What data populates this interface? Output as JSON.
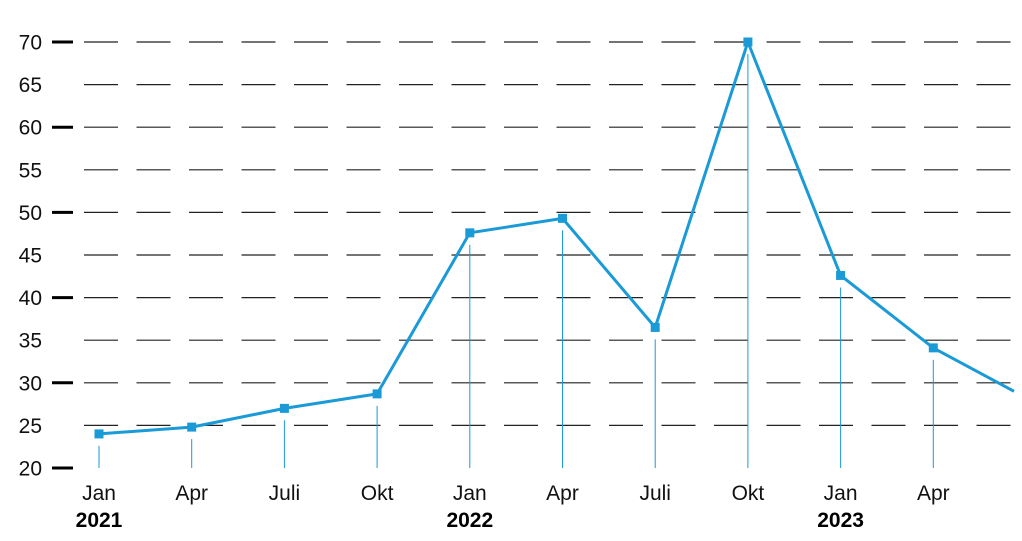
{
  "chart_data": {
    "type": "line",
    "title": "",
    "xlabel": "",
    "ylabel": "",
    "ylim": [
      20,
      70
    ],
    "y_ticks": [
      20,
      25,
      30,
      35,
      40,
      45,
      50,
      55,
      60,
      65,
      70
    ],
    "y_major_ticks": [
      20,
      30,
      40,
      50,
      60,
      70
    ],
    "grid": "dashed horizontal",
    "legend": "none",
    "categories": [
      "Jan",
      "Apr",
      "Juli",
      "Okt",
      "Jan",
      "Apr",
      "Juli",
      "Okt",
      "Jan",
      "Apr"
    ],
    "years": [
      {
        "label": "2021",
        "category_index": 0
      },
      {
        "label": "2022",
        "category_index": 4
      },
      {
        "label": "2023",
        "category_index": 8
      }
    ],
    "series": [
      {
        "values": [
          24.0,
          24.8,
          27.0,
          28.7,
          47.6,
          49.3,
          36.5,
          70.0,
          42.6,
          34.1
        ],
        "continues_to": 29.0,
        "color": "#1a9ad6"
      }
    ],
    "colors": {
      "line": "#1a9ad6",
      "grid": "#222222",
      "text": "#111111"
    }
  }
}
